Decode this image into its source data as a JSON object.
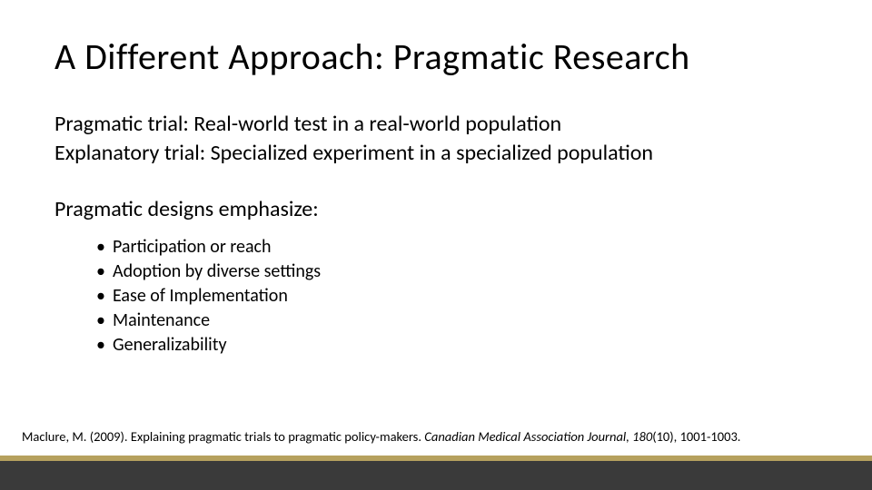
{
  "colors": {
    "background": "#ffffff",
    "text": "#000000",
    "footer_bar": "#3a3a3a",
    "footer_accent": "#b6a15e"
  },
  "typography": {
    "title_fontsize": 40,
    "body_fontsize": 24,
    "bullet_fontsize": 20,
    "citation_fontsize": 14.5,
    "font_family": "Calibri"
  },
  "title": "A Different Approach: Pragmatic Research",
  "definitions": [
    "Pragmatic trial: Real-world test in a real-world population",
    "Explanatory trial: Specialized experiment in a specialized population"
  ],
  "emphasize_heading": "Pragmatic designs emphasize:",
  "bullets": [
    "Participation or reach",
    "Adoption by diverse settings",
    "Ease of Implementation",
    "Maintenance",
    "Generalizability"
  ],
  "citation": {
    "prefix": "Maclure, M. (2009). Explaining pragmatic trials to pragmatic policy-makers. ",
    "italic": "Canadian Medical Association Journal, 180",
    "suffix": "(10), 1001-1003."
  }
}
